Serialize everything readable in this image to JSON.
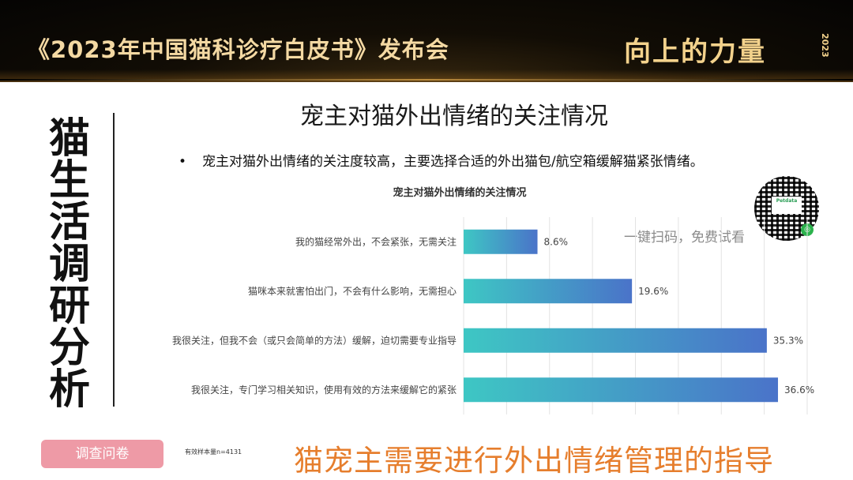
{
  "header": {
    "event_title": "《2023年中国猫科诊疗白皮书》发布会",
    "logo_text": "向上的力量",
    "logo_year": "2023"
  },
  "section_title": "猫生活调研分析",
  "slide": {
    "title": "宠主对猫外出情绪的关注情况",
    "bullet": "宠主对猫外出情绪的关注度较高，主要选择合适的外出猫包/航空箱缓解猫紧张情绪。"
  },
  "qr": {
    "brand": "Petdata",
    "hint": "一键扫码，免费试看"
  },
  "chart_data": {
    "type": "bar",
    "orientation": "horizontal",
    "title": "宠主对猫外出情绪的关注情况",
    "categories": [
      "我的猫经常外出，不会紧张，无需关注",
      "猫咪本来就害怕出门，不会有什么影响，无需担心",
      "我很关注，但我不会（或只会简单的方法）缓解，迫切需要专业指导",
      "我很关注，专门学习相关知识，使用有效的方法来缓解它的紧张"
    ],
    "values": [
      8.6,
      19.6,
      35.3,
      36.6
    ],
    "value_labels": [
      "8.6%",
      "19.6%",
      "35.3%",
      "36.6%"
    ],
    "xlim": [
      0,
      40
    ],
    "grid": true,
    "colors": {
      "bar_start": "#3ec7c4",
      "bar_end": "#4a73c9"
    }
  },
  "footer": {
    "survey_button": "调查问卷",
    "sample_size": "有效样本量n=4131",
    "conclusion": "猫宠主需要进行外出情绪管理的指导"
  }
}
